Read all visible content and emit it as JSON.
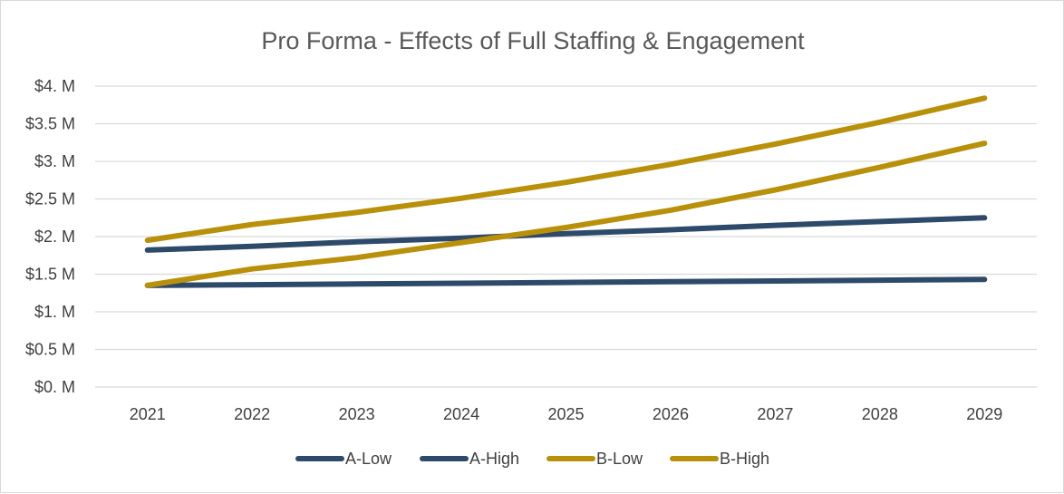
{
  "chart_data": {
    "type": "line",
    "title": "Pro Forma - Effects of Full Staffing  & Engagement",
    "xlabel": "",
    "ylabel": "",
    "categories": [
      "2021",
      "2022",
      "2023",
      "2024",
      "2025",
      "2026",
      "2027",
      "2028",
      "2029"
    ],
    "ylim": [
      0,
      4
    ],
    "yticks": [
      {
        "value": 0,
        "label": "$0. M"
      },
      {
        "value": 0.5,
        "label": "$0.5 M"
      },
      {
        "value": 1,
        "label": "$1. M"
      },
      {
        "value": 1.5,
        "label": "$1.5 M"
      },
      {
        "value": 2,
        "label": "$2. M"
      },
      {
        "value": 2.5,
        "label": "$2.5 M"
      },
      {
        "value": 3,
        "label": "$3. M"
      },
      {
        "value": 3.5,
        "label": "$3.5 M"
      },
      {
        "value": 4,
        "label": "$4. M"
      }
    ],
    "grid": true,
    "legend_position": "bottom",
    "series": [
      {
        "name": "A-Low",
        "color": "#2e4a6b",
        "values": [
          1.35,
          1.36,
          1.37,
          1.38,
          1.39,
          1.4,
          1.41,
          1.42,
          1.43
        ]
      },
      {
        "name": "A-High",
        "color": "#2e4a6b",
        "values": [
          1.82,
          1.87,
          1.93,
          1.98,
          2.04,
          2.09,
          2.15,
          2.2,
          2.25
        ]
      },
      {
        "name": "B-Low",
        "color": "#b8900a",
        "values": [
          1.35,
          1.57,
          1.72,
          1.92,
          2.12,
          2.35,
          2.62,
          2.92,
          3.24
        ]
      },
      {
        "name": "B-High",
        "color": "#b8900a",
        "values": [
          1.95,
          2.16,
          2.32,
          2.51,
          2.72,
          2.96,
          3.23,
          3.52,
          3.84
        ]
      }
    ]
  }
}
